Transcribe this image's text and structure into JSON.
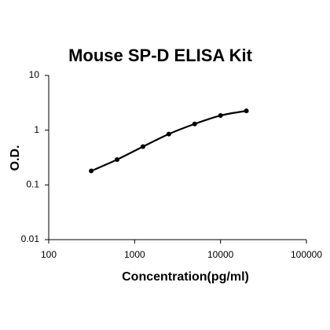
{
  "chart_data": {
    "type": "line",
    "title": "Mouse SP-D ELISA Kit",
    "x_label": "Concentration(pg/ml)",
    "y_label": "O.D.",
    "x_scale": "log",
    "y_scale": "log",
    "x": [
      312.5,
      625,
      1250,
      2500,
      5000,
      10000,
      20000
    ],
    "series": [
      {
        "color": "#000000",
        "values": [
          0.18,
          0.29,
          0.5,
          0.85,
          1.3,
          1.85,
          2.25
        ]
      }
    ],
    "xlim": [
      100,
      100000
    ],
    "xticks": [
      100,
      1000,
      10000,
      100000
    ],
    "ylim": [
      0.01,
      10
    ],
    "yticks": [
      0.01,
      0.1,
      1,
      10
    ],
    "grid": false
  }
}
